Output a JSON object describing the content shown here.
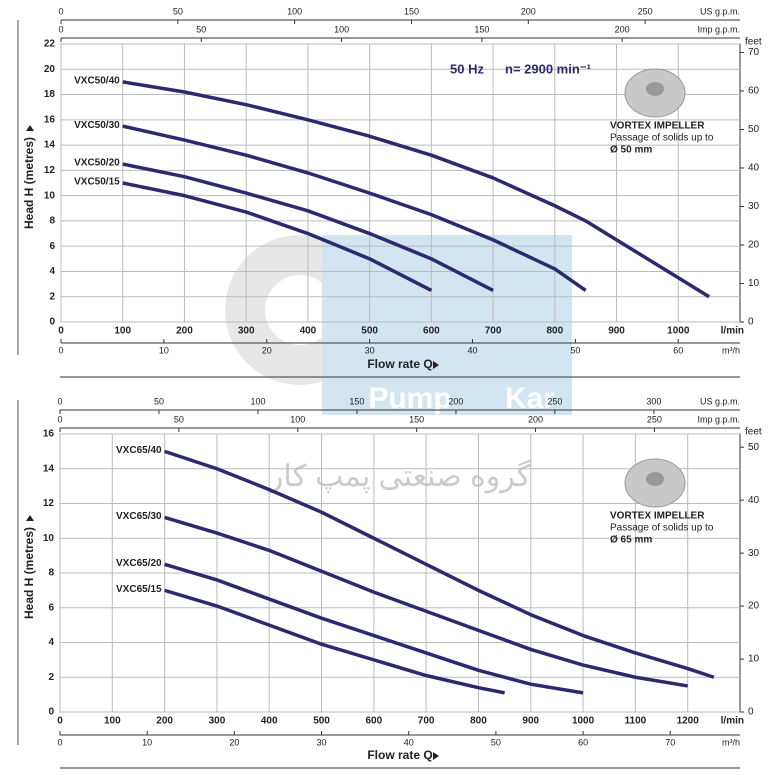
{
  "watermark": {
    "brand_left": "Pump",
    "brand_right": "Kar",
    "persian": "گروه صنعتی پمپ کار"
  },
  "chart_data": [
    {
      "type": "line",
      "frequency": "50 Hz",
      "speed": "n= 2900 min⁻¹",
      "info_title": "VORTEX IMPELLER",
      "info_line": "Passage of solids up to",
      "info_size": "Ø 50 mm",
      "ylabel": "Head H (metres)",
      "xlabel": "Flow rate Q",
      "x_unit": "l/min",
      "xlim": [
        0,
        1100
      ],
      "xticks": [
        0,
        100,
        200,
        300,
        400,
        500,
        600,
        700,
        800,
        900,
        1000
      ],
      "ylim": [
        0,
        22
      ],
      "yticks": [
        0,
        2,
        4,
        6,
        8,
        10,
        12,
        14,
        16,
        18,
        20,
        22
      ],
      "y2label": "feet",
      "y2lim": [
        0,
        72.2
      ],
      "y2ticks": [
        0,
        10,
        20,
        30,
        40,
        50,
        60,
        70
      ],
      "secondary_x_axes": [
        {
          "label": "US g.p.m.",
          "position": "top",
          "lim": [
            0,
            290.6
          ],
          "ticks": [
            0,
            50,
            100,
            150,
            200,
            250
          ]
        },
        {
          "label": "Imp g.p.m.",
          "position": "top",
          "lim": [
            0,
            242
          ],
          "ticks": [
            0,
            50,
            100,
            150,
            200
          ]
        },
        {
          "label": "m³/h",
          "position": "bottom",
          "lim": [
            0,
            66
          ],
          "ticks": [
            0,
            10,
            20,
            30,
            40,
            50,
            60
          ]
        }
      ],
      "grid": true,
      "series": [
        {
          "name": "VXC50/40",
          "color": "#2b2a6e",
          "x": [
            100,
            200,
            300,
            400,
            500,
            600,
            700,
            800,
            850,
            900,
            1000,
            1050
          ],
          "values": [
            19,
            18.2,
            17.2,
            16,
            14.7,
            13.2,
            11.4,
            9.2,
            8,
            6.5,
            3.5,
            2
          ]
        },
        {
          "name": "VXC50/30",
          "color": "#2b2a6e",
          "x": [
            100,
            200,
            300,
            400,
            500,
            600,
            700,
            800,
            850
          ],
          "values": [
            15.5,
            14.4,
            13.2,
            11.8,
            10.2,
            8.5,
            6.5,
            4.2,
            2.5
          ]
        },
        {
          "name": "VXC50/20",
          "color": "#2b2a6e",
          "x": [
            100,
            200,
            300,
            400,
            500,
            600,
            700
          ],
          "values": [
            12.5,
            11.5,
            10.2,
            8.8,
            7,
            5,
            2.5
          ]
        },
        {
          "name": "VXC50/15",
          "color": "#2b2a6e",
          "x": [
            100,
            200,
            300,
            400,
            500,
            600
          ],
          "values": [
            11,
            10,
            8.7,
            7,
            5,
            2.5
          ]
        }
      ]
    },
    {
      "type": "line",
      "info_title": "VORTEX IMPELLER",
      "info_line": "Passage of solids up to",
      "info_size": "Ø 65 mm",
      "ylabel": "Head H (metres)",
      "xlabel": "Flow rate Q",
      "x_unit": "l/min",
      "xlim": [
        0,
        1300
      ],
      "xticks": [
        0,
        100,
        200,
        300,
        400,
        500,
        600,
        700,
        800,
        900,
        1000,
        1100,
        1200
      ],
      "ylim": [
        0,
        16
      ],
      "yticks": [
        0,
        2,
        4,
        6,
        8,
        10,
        12,
        14,
        16
      ],
      "y2label": "feet",
      "y2lim": [
        0,
        52.5
      ],
      "y2ticks": [
        0,
        10,
        20,
        30,
        40,
        50
      ],
      "secondary_x_axes": [
        {
          "label": "US g.p.m.",
          "position": "top",
          "lim": [
            0,
            343.5
          ],
          "ticks": [
            0,
            50,
            100,
            150,
            200,
            250,
            300
          ]
        },
        {
          "label": "Imp g.p.m.",
          "position": "top",
          "lim": [
            0,
            286
          ],
          "ticks": [
            0,
            50,
            100,
            150,
            200,
            250
          ]
        },
        {
          "label": "m³/h",
          "position": "bottom",
          "lim": [
            0,
            78
          ],
          "ticks": [
            0,
            10,
            20,
            30,
            40,
            50,
            60,
            70
          ]
        }
      ],
      "grid": true,
      "series": [
        {
          "name": "VXC65/40",
          "color": "#2b2a6e",
          "x": [
            200,
            300,
            400,
            500,
            600,
            700,
            800,
            900,
            1000,
            1100,
            1200,
            1250
          ],
          "values": [
            15,
            14,
            12.8,
            11.5,
            10,
            8.5,
            7,
            5.6,
            4.4,
            3.4,
            2.5,
            2
          ]
        },
        {
          "name": "VXC65/30",
          "color": "#2b2a6e",
          "x": [
            200,
            300,
            400,
            500,
            600,
            700,
            800,
            900,
            1000,
            1100,
            1200
          ],
          "values": [
            11.2,
            10.3,
            9.3,
            8.1,
            6.9,
            5.8,
            4.7,
            3.6,
            2.7,
            2,
            1.5
          ]
        },
        {
          "name": "VXC65/20",
          "color": "#2b2a6e",
          "x": [
            200,
            300,
            400,
            500,
            600,
            700,
            800,
            900,
            1000
          ],
          "values": [
            8.5,
            7.6,
            6.5,
            5.4,
            4.4,
            3.4,
            2.4,
            1.6,
            1.1
          ]
        },
        {
          "name": "VXC65/15",
          "color": "#2b2a6e",
          "x": [
            200,
            300,
            400,
            500,
            600,
            700,
            800,
            850
          ],
          "values": [
            7,
            6.1,
            5,
            3.9,
            3,
            2.1,
            1.4,
            1.1
          ]
        }
      ]
    }
  ]
}
